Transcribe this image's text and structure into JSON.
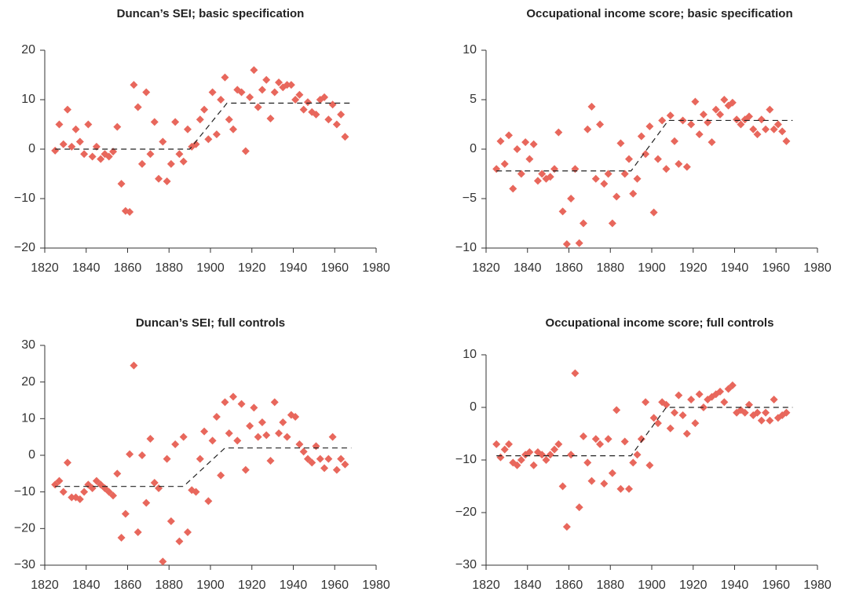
{
  "chart_data": [
    {
      "type": "scatter",
      "title": "Duncan’s SEI; basic specification",
      "color": "#e8675c",
      "x": [
        1825,
        1827,
        1829,
        1831,
        1833,
        1835,
        1837,
        1839,
        1841,
        1843,
        1845,
        1847,
        1849,
        1851,
        1853,
        1855,
        1857,
        1859,
        1861,
        1863,
        1865,
        1867,
        1869,
        1871,
        1873,
        1875,
        1877,
        1879,
        1881,
        1883,
        1885,
        1887,
        1889,
        1891,
        1893,
        1895,
        1897,
        1899,
        1901,
        1903,
        1905,
        1907,
        1909,
        1911,
        1913,
        1915,
        1917,
        1919,
        1921,
        1923,
        1925,
        1927,
        1929,
        1931,
        1933,
        1935,
        1937,
        1939,
        1941,
        1943,
        1945,
        1947,
        1949,
        1951,
        1953,
        1955,
        1957,
        1959,
        1961,
        1963,
        1965
      ],
      "values": [
        -0.3,
        5,
        1,
        8,
        0.5,
        4,
        1.5,
        -1,
        5,
        -1.5,
        0.5,
        -2,
        -1,
        -1.5,
        -0.5,
        4.5,
        -7,
        -12.5,
        -12.7,
        13,
        8.5,
        -3,
        11.5,
        -1,
        5.5,
        -6,
        1.5,
        -6.5,
        -3,
        5.5,
        -1,
        -2.5,
        4,
        0.5,
        1,
        6,
        8,
        2,
        11.5,
        3,
        10,
        14.5,
        6,
        4,
        12,
        11.5,
        -0.4,
        10.5,
        16,
        8.5,
        12,
        14,
        6.2,
        11.5,
        13.5,
        12.5,
        13,
        13,
        10,
        11,
        8,
        9.5,
        7.5,
        7,
        10,
        10.5,
        6,
        9,
        5,
        7,
        2.5
      ],
      "fit": {
        "x": [
          1825,
          1890,
          1908,
          1968
        ],
        "values": [
          0,
          0,
          9.3,
          9.3
        ]
      },
      "xlim": [
        1820,
        1980
      ],
      "xticks": [
        1820,
        1840,
        1860,
        1880,
        1900,
        1920,
        1940,
        1960,
        1980
      ],
      "ylim": [
        -20,
        20
      ],
      "yticks": [
        {
          "value": -20,
          "label": "−20"
        },
        {
          "value": -10,
          "label": "−10"
        },
        0,
        10,
        20
      ]
    },
    {
      "type": "scatter",
      "title": "Occupational income score; basic specification",
      "color": "#e8675c",
      "x": [
        1825,
        1827,
        1829,
        1831,
        1833,
        1835,
        1837,
        1839,
        1841,
        1843,
        1845,
        1847,
        1849,
        1851,
        1853,
        1855,
        1857,
        1859,
        1861,
        1863,
        1865,
        1867,
        1869,
        1871,
        1873,
        1875,
        1877,
        1879,
        1881,
        1883,
        1885,
        1887,
        1889,
        1891,
        1893,
        1895,
        1897,
        1899,
        1901,
        1903,
        1905,
        1907,
        1909,
        1911,
        1913,
        1915,
        1917,
        1919,
        1921,
        1923,
        1925,
        1927,
        1929,
        1931,
        1933,
        1935,
        1937,
        1939,
        1941,
        1943,
        1945,
        1947,
        1949,
        1951,
        1953,
        1955,
        1957,
        1959,
        1961,
        1963,
        1965
      ],
      "values": [
        -2,
        0.8,
        -1.5,
        1.4,
        -4,
        0,
        -2.5,
        0.7,
        -1,
        0.5,
        -3.2,
        -2.5,
        -3,
        -2.8,
        -2,
        1.7,
        -6.3,
        -9.6,
        -5,
        -2,
        -9.5,
        -7.5,
        2,
        4.3,
        -3,
        2.5,
        -3.5,
        -2.5,
        -7.5,
        -4.8,
        0.6,
        -2.5,
        -1,
        -4.5,
        -3,
        1.3,
        -0.5,
        2.3,
        -6.4,
        -1,
        2.9,
        -2,
        3.4,
        0.8,
        -1.5,
        2.9,
        -1.8,
        2.5,
        4.8,
        1.5,
        3.5,
        2.7,
        0.7,
        4,
        3.5,
        5,
        4.4,
        4.7,
        3,
        2.5,
        3,
        3.3,
        2,
        1.5,
        3,
        2,
        4,
        2,
        2.5,
        1.8,
        0.8
      ],
      "fit": {
        "x": [
          1825,
          1890,
          1908,
          1968
        ],
        "values": [
          -2.2,
          -2.2,
          2.9,
          2.9
        ]
      },
      "xlim": [
        1820,
        1980
      ],
      "xticks": [
        1820,
        1840,
        1860,
        1880,
        1900,
        1920,
        1940,
        1960,
        1980
      ],
      "ylim": [
        -10,
        10
      ],
      "yticks": [
        {
          "value": -10,
          "label": "−10"
        },
        {
          "value": -5,
          "label": "−5"
        },
        0,
        5,
        10
      ]
    },
    {
      "type": "scatter",
      "title": "Duncan’s SEI; full controls",
      "color": "#e8675c",
      "x": [
        1825,
        1827,
        1829,
        1831,
        1833,
        1835,
        1837,
        1839,
        1841,
        1843,
        1845,
        1847,
        1849,
        1851,
        1853,
        1855,
        1857,
        1859,
        1861,
        1863,
        1865,
        1867,
        1869,
        1871,
        1873,
        1875,
        1877,
        1879,
        1881,
        1883,
        1885,
        1887,
        1889,
        1891,
        1893,
        1895,
        1897,
        1899,
        1901,
        1903,
        1905,
        1907,
        1909,
        1911,
        1913,
        1915,
        1917,
        1919,
        1921,
        1923,
        1925,
        1927,
        1929,
        1931,
        1933,
        1935,
        1937,
        1939,
        1941,
        1943,
        1945,
        1947,
        1949,
        1951,
        1953,
        1955,
        1957,
        1959,
        1961,
        1963,
        1965
      ],
      "values": [
        -8,
        -7,
        -10,
        -2,
        -11.5,
        -11.5,
        -12,
        -10,
        -8,
        -9,
        -7,
        -8,
        -9,
        -10,
        -11,
        -5,
        -22.5,
        -16,
        0.3,
        24.5,
        -21,
        0,
        -13,
        4.5,
        -7.5,
        -9,
        -29,
        -1,
        -18,
        3,
        -23.5,
        5,
        -21,
        -9.5,
        -10,
        -1,
        6.5,
        -12.5,
        4,
        10.5,
        -5.5,
        14.5,
        6,
        16,
        4,
        14,
        -4,
        8,
        13,
        5,
        9,
        5.5,
        -1.5,
        14.5,
        6,
        9,
        5,
        11,
        10.5,
        3,
        1,
        -1,
        -2,
        2.5,
        -1,
        -3.5,
        -1,
        5,
        -4,
        -1,
        -2.5
      ],
      "fit": {
        "x": [
          1825,
          1887,
          1907,
          1968
        ],
        "values": [
          -8.5,
          -8.5,
          2,
          2
        ]
      },
      "xlim": [
        1820,
        1980
      ],
      "xticks": [
        1820,
        1840,
        1860,
        1880,
        1900,
        1920,
        1940,
        1960,
        1980
      ],
      "ylim": [
        -30,
        30
      ],
      "yticks": [
        {
          "value": -30,
          "label": "−30"
        },
        {
          "value": -20,
          "label": "−20"
        },
        {
          "value": -10,
          "label": "−10"
        },
        0,
        10,
        20,
        30
      ]
    },
    {
      "type": "scatter",
      "title": "Occupational income score; full controls",
      "color": "#e8675c",
      "x": [
        1825,
        1827,
        1829,
        1831,
        1833,
        1835,
        1837,
        1839,
        1841,
        1843,
        1845,
        1847,
        1849,
        1851,
        1853,
        1855,
        1857,
        1859,
        1861,
        1863,
        1865,
        1867,
        1869,
        1871,
        1873,
        1875,
        1877,
        1879,
        1881,
        1883,
        1885,
        1887,
        1889,
        1891,
        1893,
        1895,
        1897,
        1899,
        1901,
        1903,
        1905,
        1907,
        1909,
        1911,
        1913,
        1915,
        1917,
        1919,
        1921,
        1923,
        1925,
        1927,
        1929,
        1931,
        1933,
        1935,
        1937,
        1939,
        1941,
        1943,
        1945,
        1947,
        1949,
        1951,
        1953,
        1955,
        1957,
        1959,
        1961,
        1963,
        1965
      ],
      "values": [
        -7,
        -9.5,
        -8,
        -7,
        -10.5,
        -11,
        -10,
        -9,
        -8.5,
        -11,
        -8.5,
        -9,
        -10,
        -9,
        -8,
        -7,
        -15,
        -22.7,
        -9,
        6.5,
        -19,
        -5.5,
        -10.5,
        -14,
        -6,
        -7,
        -14.5,
        -6,
        -12.5,
        -0.5,
        -15.5,
        -6.5,
        -15.5,
        -10.5,
        -9,
        -6,
        1,
        -11,
        -2,
        -3,
        1,
        0.5,
        -4,
        -1,
        2.3,
        -1.5,
        -5,
        1.5,
        -3,
        2.5,
        0,
        1.5,
        2,
        2.5,
        3,
        1,
        3.5,
        4.2,
        -1,
        -0.5,
        -1,
        0.5,
        -1.5,
        -1,
        -2.5,
        -1,
        -2.5,
        1.5,
        -2,
        -1.5,
        -1
      ],
      "fit": {
        "x": [
          1825,
          1890,
          1907,
          1968
        ],
        "values": [
          -9.2,
          -9.2,
          0,
          0
        ]
      },
      "xlim": [
        1820,
        1980
      ],
      "xticks": [
        1820,
        1840,
        1860,
        1880,
        1900,
        1920,
        1940,
        1960,
        1980
      ],
      "ylim": [
        -30,
        10
      ],
      "yticks": [
        {
          "value": -30,
          "label": "−30"
        },
        {
          "value": -20,
          "label": "−20"
        },
        {
          "value": -10,
          "label": "−10"
        },
        0,
        10
      ]
    }
  ]
}
